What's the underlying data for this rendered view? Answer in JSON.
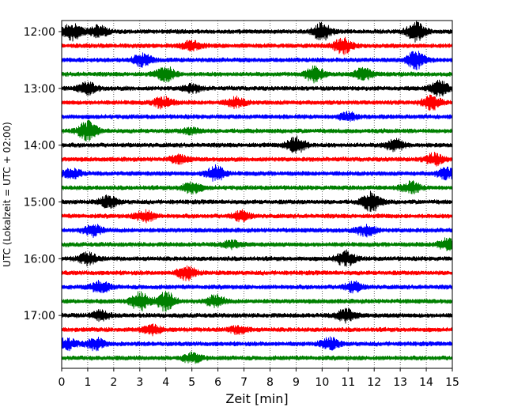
{
  "chart_data": {
    "type": "line",
    "title": "",
    "xlabel": "Zeit  [min]",
    "ylabel": "UTC (Lokalzeit = UTC + 02:00)",
    "xlim": [
      0,
      15
    ],
    "x_ticks": [
      "0",
      "1",
      "2",
      "3",
      "4",
      "5",
      "6",
      "7",
      "8",
      "9",
      "10",
      "11",
      "12",
      "13",
      "14",
      "15"
    ],
    "y_ticks": [
      "12:00",
      "13:00",
      "14:00",
      "15:00",
      "16:00",
      "17:00"
    ],
    "trace_interval_min": 15,
    "first_trace": "12:00",
    "last_trace": "17:45",
    "grid": "vertical dotted lines at each minute",
    "series_colors": [
      "#000000",
      "#ff0000",
      "#0000ff",
      "#008000"
    ],
    "traces": [
      {
        "start": "12:00",
        "bursts": [
          [
            0.4,
            0.9
          ],
          [
            1.4,
            0.6
          ],
          [
            10.0,
            0.9
          ],
          [
            13.6,
            1.0
          ]
        ]
      },
      {
        "start": "12:15",
        "bursts": [
          [
            5.0,
            0.5
          ],
          [
            10.8,
            0.8
          ]
        ]
      },
      {
        "start": "12:30",
        "bursts": [
          [
            3.1,
            0.7
          ],
          [
            13.6,
            0.9
          ]
        ]
      },
      {
        "start": "12:45",
        "bursts": [
          [
            4.0,
            0.8
          ],
          [
            9.7,
            0.8
          ],
          [
            11.6,
            0.6
          ]
        ]
      },
      {
        "start": "13:00",
        "bursts": [
          [
            1.0,
            0.6
          ],
          [
            5.0,
            0.4
          ],
          [
            14.5,
            0.8
          ]
        ]
      },
      {
        "start": "13:15",
        "bursts": [
          [
            3.9,
            0.6
          ],
          [
            6.7,
            0.5
          ],
          [
            14.2,
            0.7
          ]
        ]
      },
      {
        "start": "13:30",
        "bursts": [
          [
            11.0,
            0.4
          ]
        ]
      },
      {
        "start": "13:45",
        "bursts": [
          [
            1.0,
            1.0
          ],
          [
            5.0,
            0.3
          ]
        ]
      },
      {
        "start": "14:00",
        "bursts": [
          [
            9.0,
            0.9
          ],
          [
            12.8,
            0.6
          ]
        ]
      },
      {
        "start": "14:15",
        "bursts": [
          [
            4.5,
            0.4
          ],
          [
            14.3,
            0.6
          ]
        ]
      },
      {
        "start": "14:30",
        "bursts": [
          [
            0.4,
            0.5
          ],
          [
            5.9,
            0.8
          ],
          [
            14.8,
            0.6
          ]
        ]
      },
      {
        "start": "14:45",
        "bursts": [
          [
            5.0,
            0.6
          ],
          [
            13.4,
            0.6
          ]
        ]
      },
      {
        "start": "15:00",
        "bursts": [
          [
            1.8,
            0.6
          ],
          [
            11.9,
            1.0
          ]
        ]
      },
      {
        "start": "15:15",
        "bursts": [
          [
            3.2,
            0.6
          ],
          [
            6.9,
            0.5
          ]
        ]
      },
      {
        "start": "15:30",
        "bursts": [
          [
            1.2,
            0.6
          ],
          [
            11.7,
            0.6
          ]
        ]
      },
      {
        "start": "15:45",
        "bursts": [
          [
            6.5,
            0.4
          ],
          [
            14.8,
            0.6
          ]
        ]
      },
      {
        "start": "16:00",
        "bursts": [
          [
            1.0,
            0.6
          ],
          [
            10.9,
            0.8
          ]
        ]
      },
      {
        "start": "16:15",
        "bursts": [
          [
            4.8,
            0.7
          ]
        ]
      },
      {
        "start": "16:30",
        "bursts": [
          [
            1.5,
            0.6
          ],
          [
            11.2,
            0.5
          ]
        ]
      },
      {
        "start": "16:45",
        "bursts": [
          [
            3.0,
            1.0
          ],
          [
            4.0,
            1.0
          ],
          [
            5.9,
            0.6
          ]
        ]
      },
      {
        "start": "17:00",
        "bursts": [
          [
            1.5,
            0.5
          ],
          [
            10.9,
            0.7
          ]
        ]
      },
      {
        "start": "17:15",
        "bursts": [
          [
            3.5,
            0.5
          ],
          [
            6.8,
            0.4
          ]
        ]
      },
      {
        "start": "17:30",
        "bursts": [
          [
            0.2,
            0.6
          ],
          [
            1.3,
            0.6
          ],
          [
            10.3,
            0.6
          ]
        ]
      },
      {
        "start": "17:45",
        "bursts": [
          [
            5.0,
            0.5
          ]
        ]
      }
    ]
  }
}
